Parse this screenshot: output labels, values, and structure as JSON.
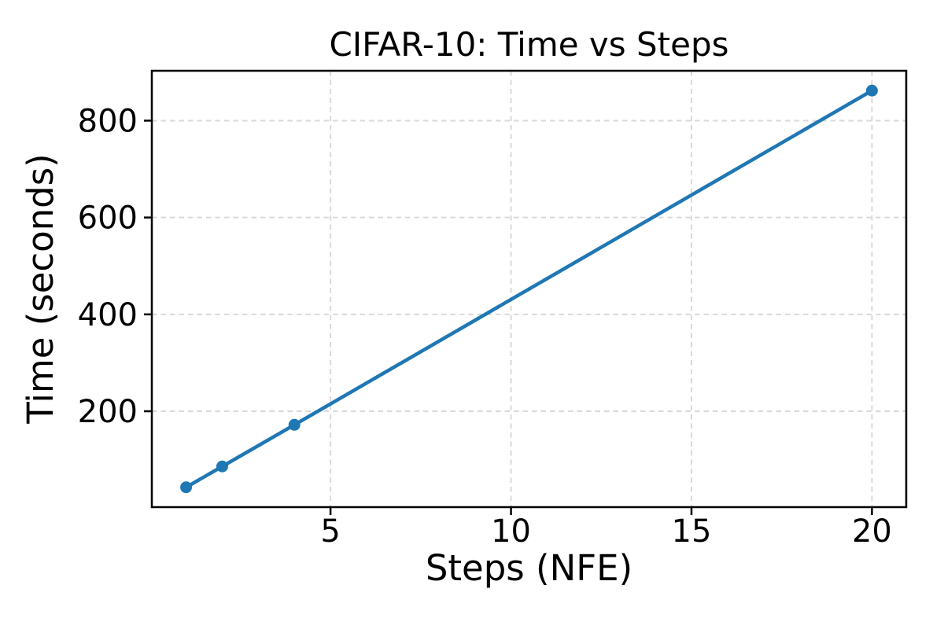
{
  "chart_data": {
    "type": "line",
    "title": "CIFAR-10: Time vs Steps",
    "xlabel": "Steps (NFE)",
    "ylabel": "Time (seconds)",
    "x": [
      1,
      2,
      4,
      20
    ],
    "y": [
      43,
      86,
      172,
      862
    ],
    "xticks": [
      5,
      10,
      15,
      20
    ],
    "yticks": [
      200,
      400,
      600,
      800
    ],
    "xlim": [
      0.05,
      20.95
    ],
    "ylim": [
      2,
      903
    ],
    "grid": true,
    "grid_style": "dashed",
    "grid_color": "#d9d9d9",
    "line_color": "#1f77b4",
    "marker_color": "#1f77b4",
    "frame_color": "#000000",
    "marker": "circle",
    "legend": false
  }
}
